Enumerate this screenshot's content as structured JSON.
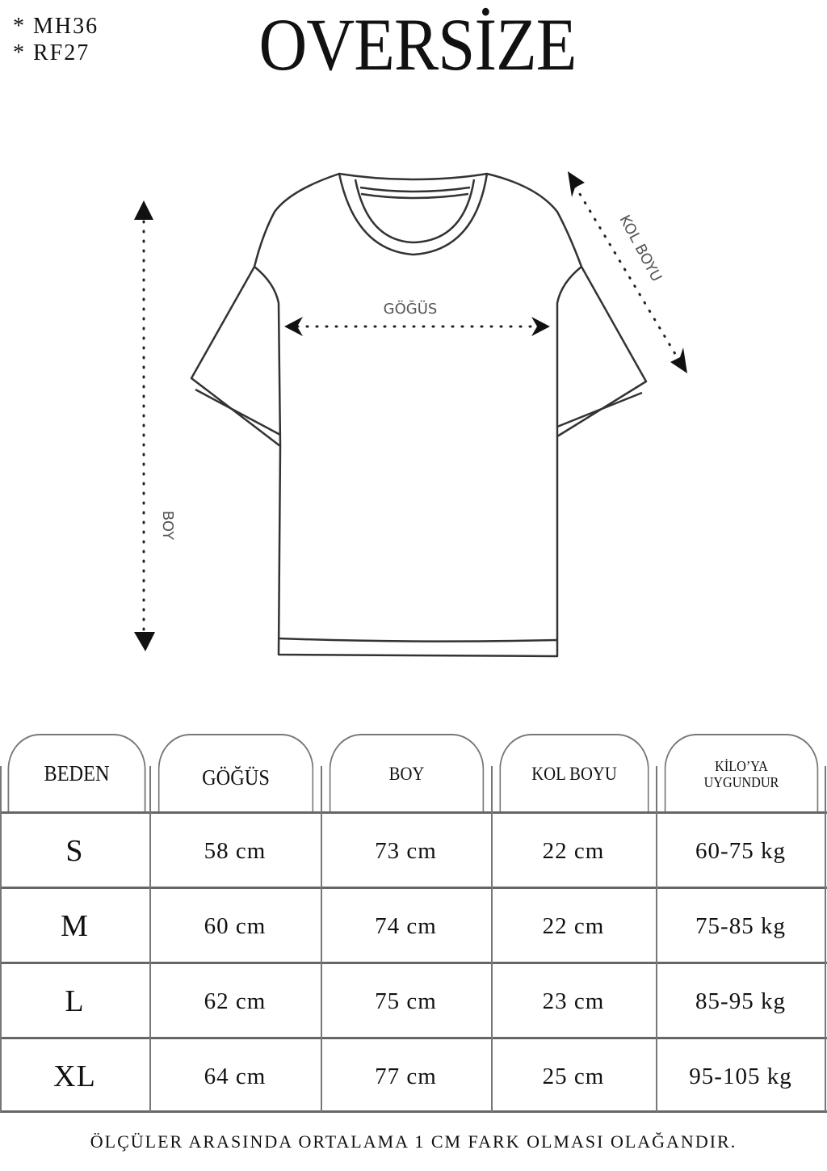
{
  "codes": [
    "* MH36",
    "* RF27"
  ],
  "title": "OVERSİZE",
  "diagram": {
    "chest_label": "GÖĞÜS",
    "length_label": "BOY",
    "sleeve_label": "KOL BOYU"
  },
  "table": {
    "headers": [
      "BEDEN",
      "GÖĞÜS",
      "BOY",
      "KOL BOYU",
      "KİLO’YA UYGUNDUR"
    ],
    "header_lines": {
      "weight_1": "KİLO’YA",
      "weight_2": "UYGUNDUR"
    },
    "rows": [
      [
        "S",
        "58 cm",
        "73 cm",
        "22  cm",
        "60-75 kg"
      ],
      [
        "M",
        "60 cm",
        "74 cm",
        "22 cm",
        "75-85 kg"
      ],
      [
        "L",
        "62 cm",
        "75 cm",
        "23 cm",
        "85-95 kg"
      ],
      [
        "XL",
        "64 cm",
        "77 cm",
        "25 cm",
        "95-105 kg"
      ]
    ]
  },
  "footer": "ÖLÇÜLER ARASINDA ORTALAMA 1 CM FARK OLMASI OLAĞANDIR."
}
